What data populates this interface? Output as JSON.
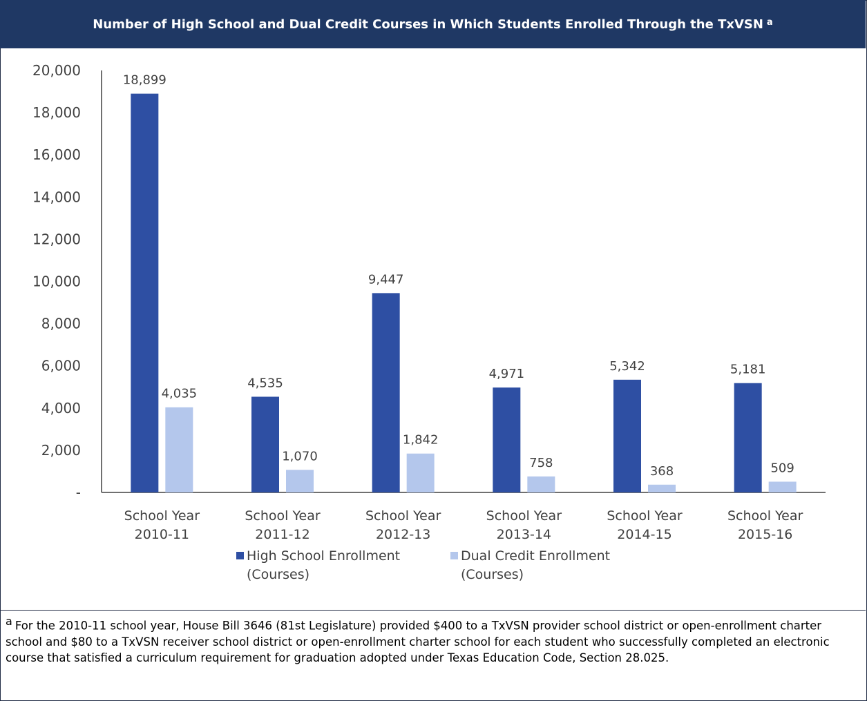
{
  "header": {
    "title": "Number of High School and Dual Credit Courses in Which Students Enrolled Through the TxVSN",
    "title_note": "a"
  },
  "footnote": {
    "marker": "a",
    "text": "For the 2010-11 school year, House Bill 3646 (81st Legislature) provided $400 to a TxVSN provider school district or open-enrollment charter school and $80 to a TxVSN receiver school district or open-enrollment charter school for each student who successfully completed an electronic course that satisfied a curriculum requirement for graduation adopted under Texas Education Code, Section 28.025."
  },
  "chart_data": {
    "type": "bar",
    "title": "Number of High School and Dual Credit Courses in Which Students Enrolled Through the TxVSN",
    "categories": [
      [
        "School Year",
        "2010-11"
      ],
      [
        "School Year",
        "2011-12"
      ],
      [
        "School Year",
        "2012-13"
      ],
      [
        "School Year",
        "2013-14"
      ],
      [
        "School Year",
        "2014-15"
      ],
      [
        "School Year",
        "2015-16"
      ]
    ],
    "series": [
      {
        "name": [
          "High School Enrollment",
          "(Courses)"
        ],
        "color": "#2e4fa3",
        "values": [
          18899,
          4535,
          9447,
          4971,
          5342,
          5181
        ],
        "labels": [
          "18,899",
          "4,535",
          "9,447",
          "4,971",
          "5,342",
          "5,181"
        ]
      },
      {
        "name": [
          "Dual Credit Enrollment",
          "(Courses)"
        ],
        "color": "#b4c7ec",
        "values": [
          4035,
          1070,
          1842,
          758,
          368,
          509
        ],
        "labels": [
          "4,035",
          "1,070",
          "1,842",
          "758",
          "368",
          "509"
        ]
      }
    ],
    "ylim": [
      0,
      20000
    ],
    "yticks": [
      0,
      2000,
      4000,
      6000,
      8000,
      10000,
      12000,
      14000,
      16000,
      18000,
      20000
    ],
    "ytick_labels": [
      "-",
      "2,000",
      "4,000",
      "6,000",
      "8,000",
      "10,000",
      "12,000",
      "14,000",
      "16,000",
      "18,000",
      "20,000"
    ],
    "grid": false,
    "legend_position": "bottom"
  }
}
